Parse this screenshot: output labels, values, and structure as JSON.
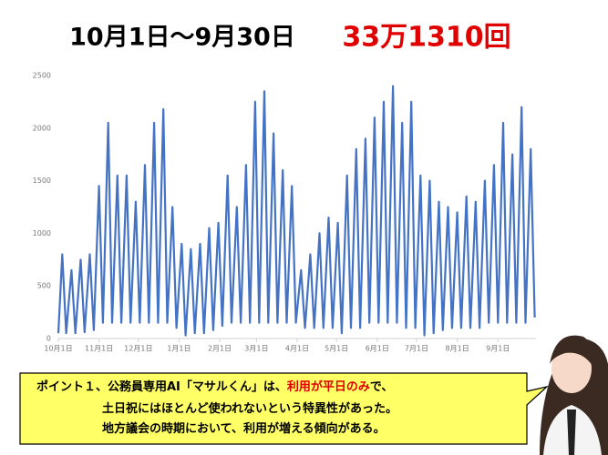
{
  "chart_data": {
    "type": "line",
    "title": "10月1日〜9月30日",
    "total": "33万1310回",
    "x": [
      0,
      3,
      6,
      10,
      13,
      17,
      20,
      24,
      27,
      31,
      34,
      38,
      41,
      45,
      48,
      52,
      55,
      59,
      62,
      66,
      69,
      73,
      76,
      80,
      83,
      87,
      90,
      94,
      97,
      101,
      104,
      108,
      111,
      115,
      118,
      122,
      125,
      129,
      132,
      136,
      139,
      143,
      146,
      150,
      153,
      157,
      160,
      164,
      167,
      171,
      174,
      178,
      181,
      185,
      188,
      192,
      195,
      199,
      202,
      206,
      209,
      213,
      216,
      220,
      223,
      227,
      230,
      234,
      237,
      241,
      244,
      248,
      251,
      255,
      258,
      262,
      265,
      269,
      272,
      276,
      279,
      283,
      286,
      290,
      293,
      297,
      300,
      304,
      307,
      311,
      314,
      318,
      321,
      325,
      328,
      332,
      335,
      339,
      342,
      346,
      349,
      353,
      356,
      360,
      363
    ],
    "series": [
      {
        "color": "#4472c4",
        "values": [
          50,
          800,
          50,
          650,
          50,
          750,
          60,
          800,
          80,
          1450,
          150,
          2050,
          150,
          1550,
          150,
          1550,
          150,
          1300,
          150,
          1650,
          150,
          2050,
          150,
          2180,
          150,
          1250,
          100,
          900,
          30,
          850,
          50,
          900,
          50,
          1050,
          80,
          1100,
          120,
          1550,
          150,
          1250,
          150,
          1650,
          150,
          2250,
          150,
          2350,
          150,
          1950,
          150,
          1600,
          150,
          1450,
          150,
          650,
          100,
          800,
          100,
          1000,
          100,
          1150,
          100,
          1100,
          50,
          1550,
          100,
          1800,
          100,
          1900,
          150,
          2100,
          150,
          2250,
          150,
          2400,
          150,
          2050,
          100,
          2250,
          100,
          1550,
          30,
          1500,
          50,
          1300,
          80,
          1250,
          100,
          1200,
          100,
          1350,
          100,
          1300,
          100,
          1500,
          150,
          1650,
          150,
          2050,
          150,
          1750,
          150,
          2200,
          150,
          1800,
          200
        ]
      }
    ],
    "xlim": [
      0,
      364
    ],
    "xticks": [
      {
        "value": 0,
        "label": "10月1日"
      },
      {
        "value": 31,
        "label": "11月1日"
      },
      {
        "value": 61,
        "label": "12月1日"
      },
      {
        "value": 92,
        "label": "1月1日"
      },
      {
        "value": 123,
        "label": "2月1日"
      },
      {
        "value": 151,
        "label": "3月1日"
      },
      {
        "value": 182,
        "label": "4月1日"
      },
      {
        "value": 212,
        "label": "5月1日"
      },
      {
        "value": 243,
        "label": "6月1日"
      },
      {
        "value": 273,
        "label": "7月1日"
      },
      {
        "value": 304,
        "label": "8月1日"
      },
      {
        "value": 335,
        "label": "9月1日"
      }
    ],
    "ylim": [
      0,
      2500
    ],
    "yticks": [
      0,
      500,
      1000,
      1500,
      2000,
      2500
    ],
    "grid": false
  },
  "callout": {
    "lines": [
      [
        "ポイント１、公務員専用AI「マサルくん」は、",
        "利用が平日のみ",
        "で、"
      ],
      [
        "土日祝にはほとんど使われないという特異性があった。"
      ],
      [
        "地方議会の時期において、利用が増える傾向がある。"
      ]
    ]
  }
}
